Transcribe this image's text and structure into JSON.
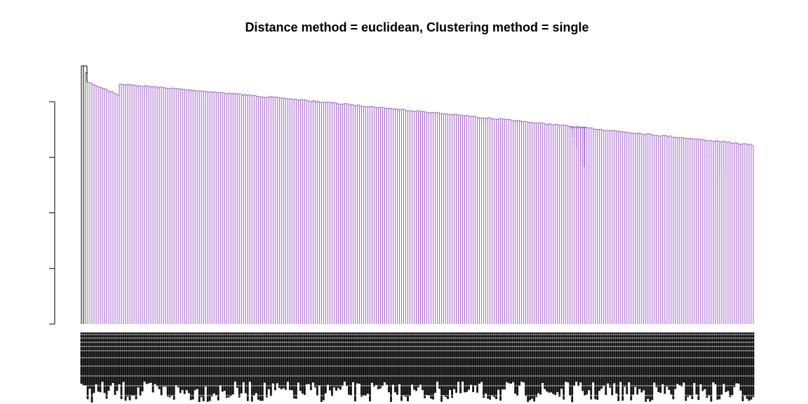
{
  "chart_data": {
    "type": "dendrogram",
    "title": "Distance method = euclidean, Clustering method = single",
    "xlabel": "",
    "ylabel": "",
    "y_axis": {
      "ticks": 5,
      "tick_labels": [],
      "labels_visible": false
    },
    "grid": false,
    "legend": "none",
    "leaf_count": 320,
    "leaf_labels_legible": false,
    "clusters": [
      {
        "color": "#000000",
        "leaves": 2
      },
      {
        "color": "#228B22",
        "leaves": 1
      },
      {
        "color": "#9F5FC8",
        "leaves": 317
      }
    ],
    "colors": {
      "axis": "#000000",
      "main_cluster": "#9F5FC8",
      "second_cluster": "#228B22",
      "root": "#000000"
    }
  }
}
